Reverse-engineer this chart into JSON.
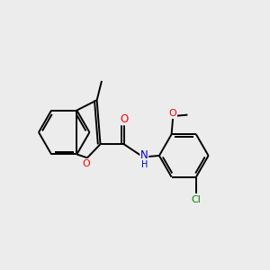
{
  "background_color": "#ececec",
  "bond_color": "#000000",
  "atom_colors": {
    "O": "#ff0000",
    "N": "#0000cd",
    "Cl": "#008000",
    "C": "#000000"
  },
  "figsize": [
    3.0,
    3.0
  ],
  "dpi": 100
}
